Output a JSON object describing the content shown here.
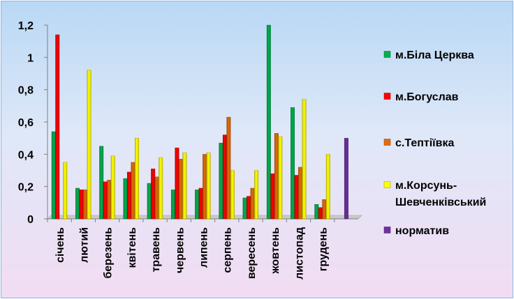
{
  "chart_data": {
    "type": "bar",
    "categories": [
      "січень",
      "лютий",
      "березень",
      "квітень",
      "травень",
      "червень",
      "липень",
      "серпень",
      "вересень",
      "жовтень",
      "листопад",
      "грудень",
      ""
    ],
    "series": [
      {
        "name": "м.Біла Церква",
        "color": "#00b050",
        "values": [
          0.54,
          0.19,
          0.45,
          0.25,
          0.22,
          0.18,
          0.18,
          0.47,
          0.13,
          1.2,
          0.69,
          0.09,
          null
        ]
      },
      {
        "name": "м.Богуслав",
        "color": "#ff0000",
        "values": [
          1.14,
          0.18,
          0.23,
          0.29,
          0.31,
          0.44,
          0.19,
          0.52,
          0.14,
          0.28,
          0.27,
          0.07,
          null
        ]
      },
      {
        "name": "с.Тептіївка",
        "color": "#e36c09",
        "values": [
          null,
          0.18,
          0.24,
          0.35,
          0.26,
          0.37,
          0.4,
          0.63,
          0.19,
          0.53,
          0.32,
          0.12,
          null
        ]
      },
      {
        "name_lines": [
          "м.Корсунь-",
          "Шевченківський"
        ],
        "color": "#ffff00",
        "values": [
          0.35,
          0.92,
          0.39,
          0.5,
          0.38,
          0.41,
          0.41,
          0.3,
          0.3,
          0.51,
          0.74,
          0.4,
          null
        ]
      },
      {
        "name": "норматив",
        "color": "#7030a0",
        "values": [
          null,
          null,
          null,
          null,
          null,
          null,
          null,
          null,
          null,
          null,
          null,
          null,
          0.5
        ]
      }
    ],
    "y_ticks": [
      "0",
      "0,2",
      "0,4",
      "0,6",
      "0,8",
      "1",
      "1,2"
    ],
    "ylim": [
      0,
      1.2
    ],
    "grid": false,
    "legend_position": "right"
  }
}
